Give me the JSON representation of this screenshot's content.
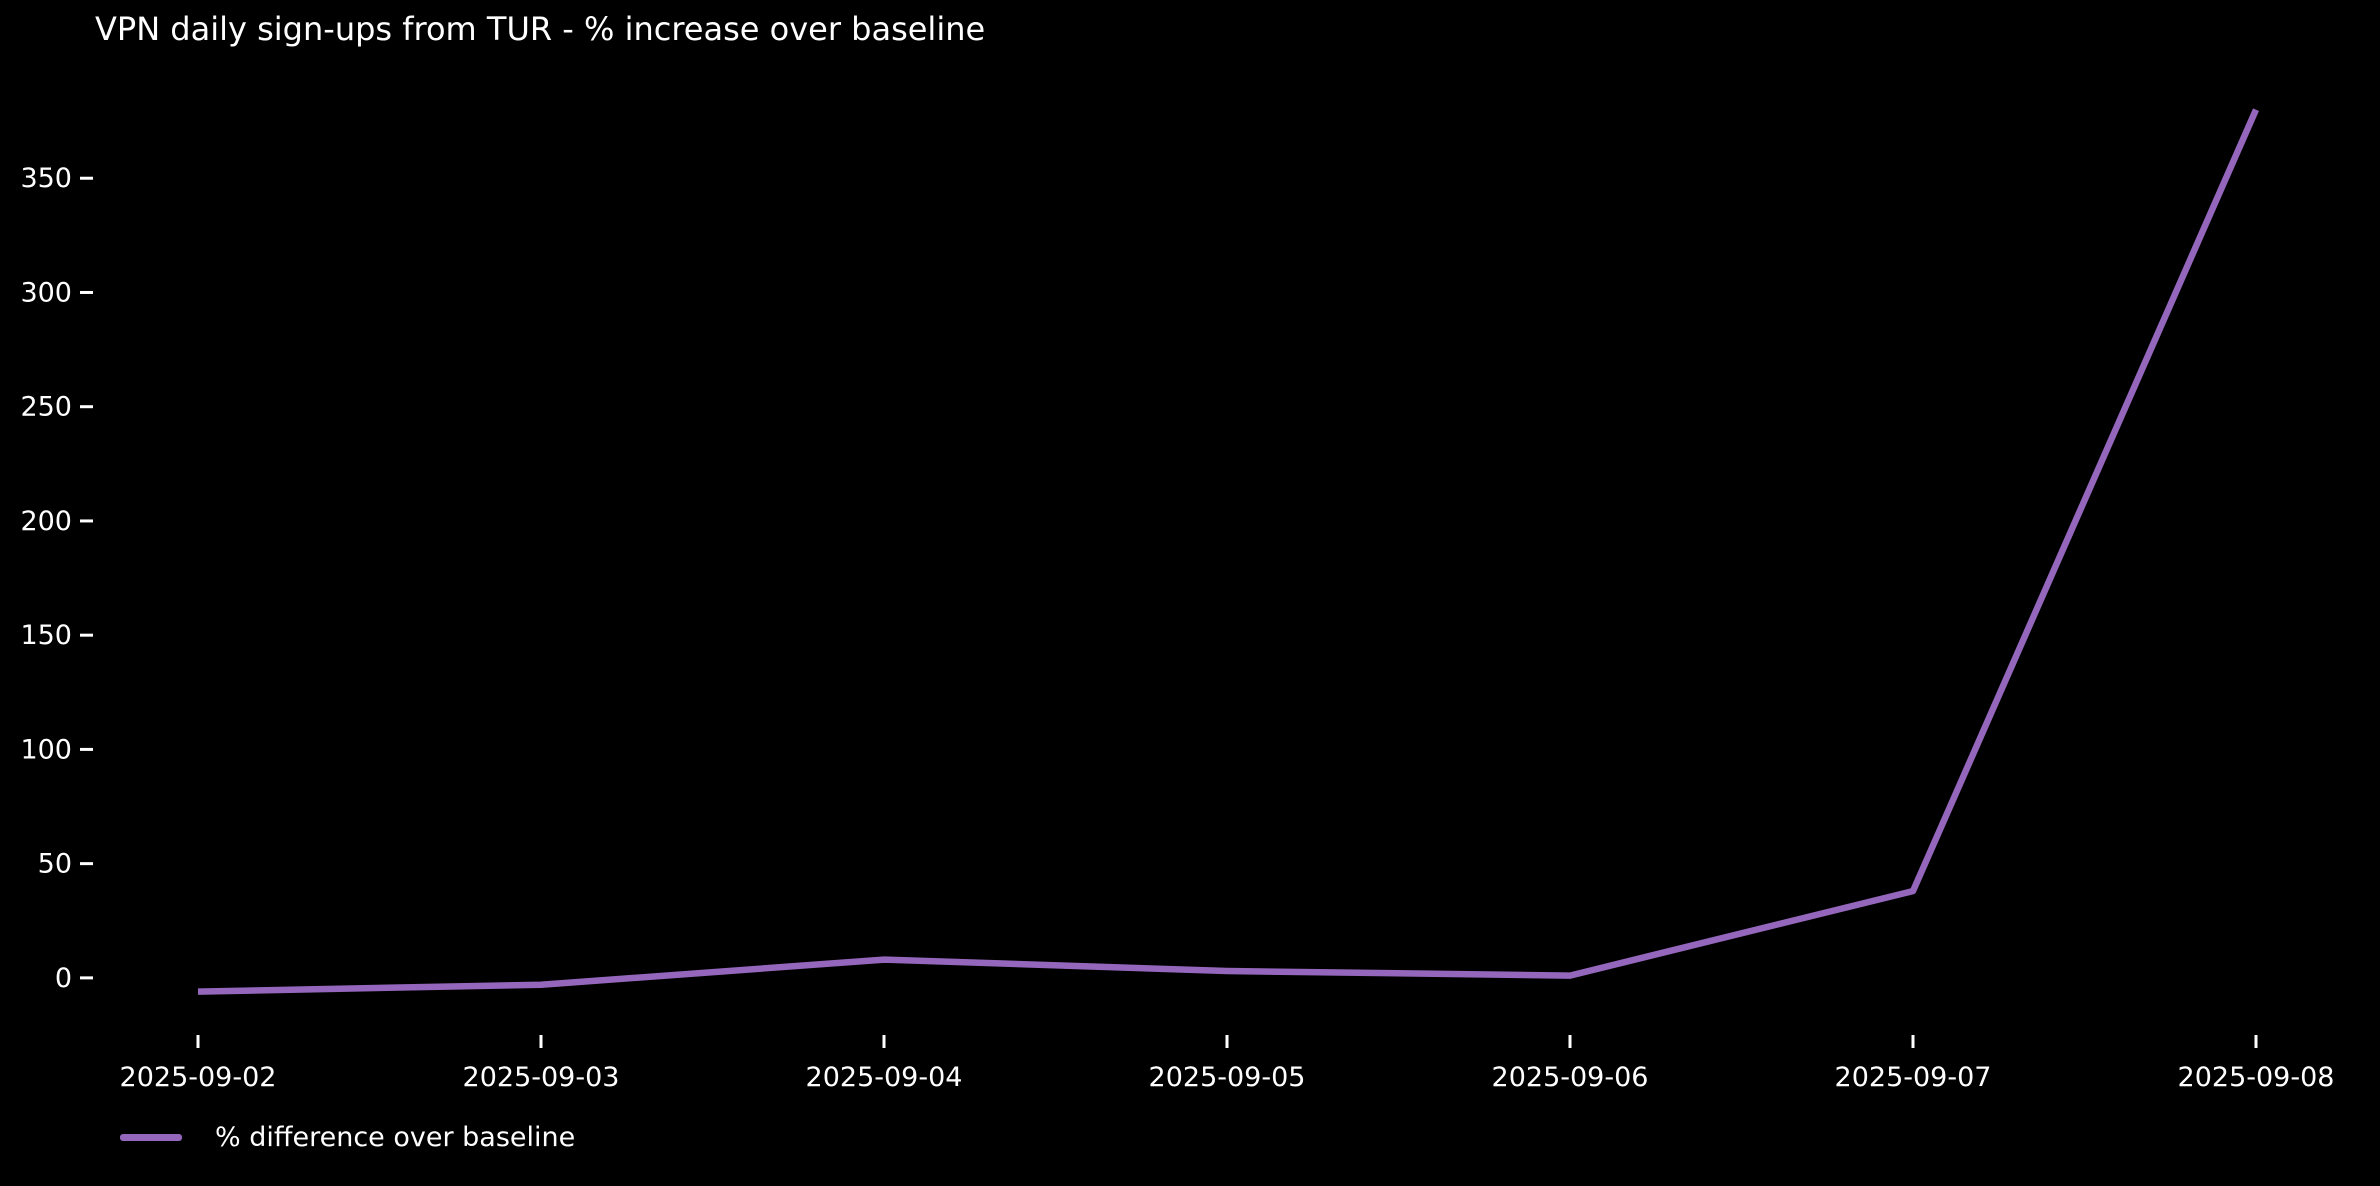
{
  "colors": {
    "background": "#000000",
    "text": "#ffffff",
    "line": "#9467bd"
  },
  "legend": {
    "label": "% difference over baseline"
  },
  "chart_data": {
    "type": "line",
    "title": "VPN daily sign-ups from TUR - % increase over baseline",
    "x": [
      "2025-09-02",
      "2025-09-03",
      "2025-09-04",
      "2025-09-05",
      "2025-09-06",
      "2025-09-07",
      "2025-09-08"
    ],
    "series": [
      {
        "name": "% difference over baseline",
        "values": [
          -6,
          -3,
          8,
          3,
          1,
          38,
          380
        ]
      }
    ],
    "xlabel": "",
    "ylabel": "",
    "yticks": [
      0,
      50,
      100,
      150,
      200,
      250,
      300,
      350
    ],
    "ylim": [
      -25,
      400
    ],
    "grid": false,
    "legend_position": "lower-left"
  }
}
